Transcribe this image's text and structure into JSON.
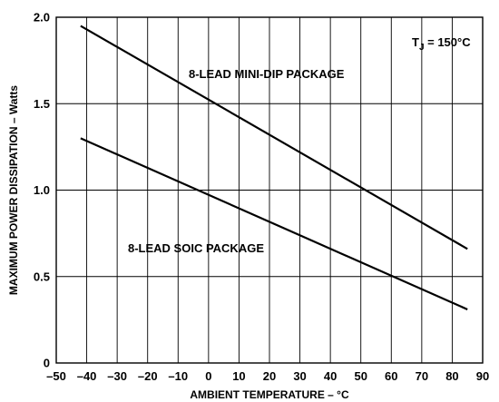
{
  "chart_data": {
    "type": "line",
    "title": "",
    "xlabel": "AMBIENT TEMPERATURE – °C",
    "ylabel": "MAXIMUM POWER DISSIPATION – Watts",
    "xlim": [
      -50,
      90
    ],
    "ylim": [
      0,
      2.0
    ],
    "x_ticks": [
      -50,
      -40,
      -30,
      -20,
      -10,
      0,
      10,
      20,
      30,
      40,
      50,
      60,
      70,
      80,
      90
    ],
    "y_ticks": [
      0,
      0.5,
      1.0,
      1.5,
      2.0
    ],
    "x_tick_labels": [
      "–50",
      "–40",
      "–30",
      "–20",
      "–10",
      "0",
      "10",
      "20",
      "30",
      "40",
      "50",
      "60",
      "70",
      "80",
      "90"
    ],
    "y_tick_labels": [
      "0",
      "0.5",
      "1.0",
      "1.5",
      "2.0"
    ],
    "grid": true,
    "series": [
      {
        "name": "8-LEAD MINI-DIP PACKAGE",
        "x": [
          -42,
          85
        ],
        "y": [
          1.95,
          0.66
        ]
      },
      {
        "name": "8-LEAD SOIC PACKAGE",
        "x": [
          -42,
          85
        ],
        "y": [
          1.3,
          0.31
        ]
      }
    ],
    "annotations": {
      "tj_main": "T",
      "tj_sub": "J",
      "tj_value": " = 150°C"
    }
  }
}
